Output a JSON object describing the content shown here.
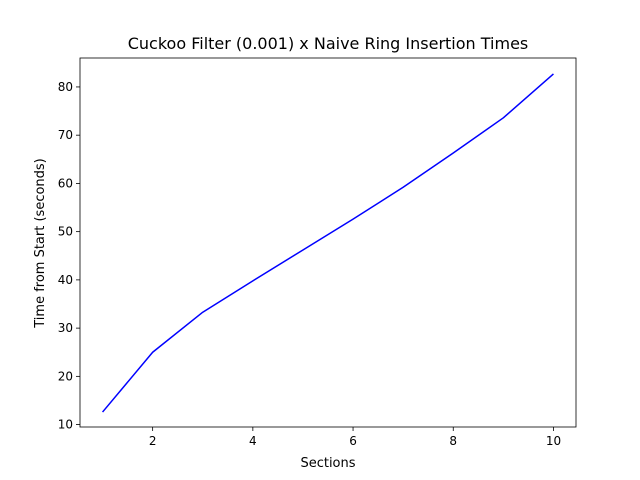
{
  "chart_data": {
    "type": "line",
    "title": "Cuckoo Filter (0.001) x Naive Ring Insertion Times",
    "xlabel": "Sections",
    "ylabel": "Time from Start (seconds)",
    "xlim": [
      0.55,
      10.45
    ],
    "ylim": [
      9.5,
      86.0
    ],
    "xticks": [
      2,
      4,
      6,
      8,
      10
    ],
    "yticks": [
      10,
      20,
      30,
      40,
      50,
      60,
      70,
      80
    ],
    "grid": false,
    "legend": "none",
    "series": [
      {
        "color": "#0000ff",
        "x": [
          1,
          2,
          3,
          4,
          5,
          6,
          7,
          8,
          9,
          10
        ],
        "y": [
          12.6,
          25.0,
          33.3,
          39.8,
          46.2,
          52.6,
          59.2,
          66.3,
          73.6,
          82.7
        ]
      }
    ]
  }
}
